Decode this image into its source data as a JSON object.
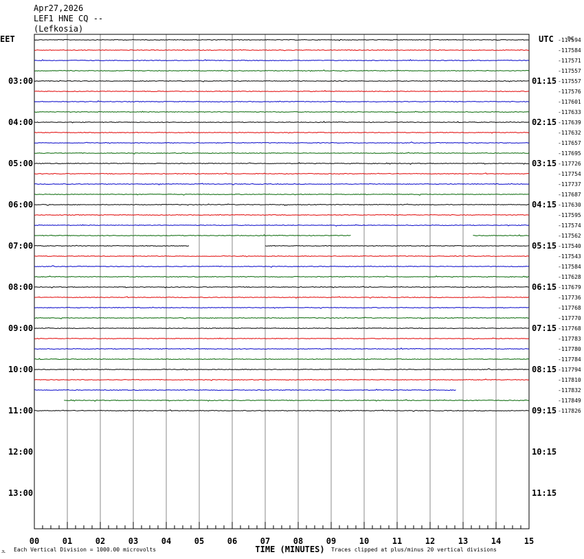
{
  "header": {
    "date": "Apr27,2026",
    "station": "LEF1 HNE CQ --",
    "location": "(Lefkosia)"
  },
  "chart_data": {
    "type": "line",
    "title": "Apr27,2026 LEF1 HNE CQ -- (Lefkosia)",
    "left_timezone": "EET",
    "right_timezone": "UTC",
    "right_top_label": "DC",
    "xlabel": "TIME (MINUTES)",
    "xlim": [
      0,
      15
    ],
    "x_ticks": [
      "00",
      "01",
      "02",
      "03",
      "04",
      "05",
      "06",
      "07",
      "08",
      "09",
      "10",
      "11",
      "12",
      "13",
      "14",
      "15"
    ],
    "left_hour_labels": [
      "03:00",
      "04:00",
      "05:00",
      "06:00",
      "07:00",
      "08:00",
      "09:00",
      "10:00",
      "11:00",
      "12:00",
      "13:00"
    ],
    "right_hour_labels": [
      "01:15",
      "02:15",
      "03:15",
      "04:15",
      "05:15",
      "06:15",
      "07:15",
      "08:15",
      "09:15",
      "10:15",
      "11:15"
    ],
    "trace_colors": [
      "#000000",
      "#e00000",
      "#0000c8",
      "#006400"
    ],
    "dc_offsets": [
      "-117594",
      "-117584",
      "-117571",
      "-117557",
      "-117557",
      "-117576",
      "-117601",
      "-117633",
      "-117639",
      "-117632",
      "-117657",
      "-117695",
      "-117726",
      "-117754",
      "-117737",
      "-117687",
      "-117630",
      "-117595",
      "-117574",
      "-117562",
      "-117540",
      "-117543",
      "-117584",
      "-117628",
      "-117679",
      "-117736",
      "-117768",
      "-117770",
      "-117768",
      "-117783",
      "-117780",
      "-117784",
      "-117794",
      "-117810",
      "-117832",
      "-117849",
      "-117826"
    ],
    "trace_segments": [
      [
        [
          0,
          15
        ]
      ],
      [
        [
          0,
          15
        ]
      ],
      [
        [
          0,
          15
        ]
      ],
      [
        [
          0,
          15
        ]
      ],
      [
        [
          0,
          15
        ]
      ],
      [
        [
          0,
          15
        ]
      ],
      [
        [
          0,
          15
        ]
      ],
      [
        [
          0,
          15
        ]
      ],
      [
        [
          0,
          15
        ]
      ],
      [
        [
          0,
          15
        ]
      ],
      [
        [
          0,
          15
        ]
      ],
      [
        [
          0,
          15
        ]
      ],
      [
        [
          0,
          15
        ]
      ],
      [
        [
          0,
          15
        ]
      ],
      [
        [
          0,
          15
        ]
      ],
      [
        [
          0,
          15
        ]
      ],
      [
        [
          0,
          15
        ]
      ],
      [
        [
          0,
          15
        ]
      ],
      [
        [
          0,
          15
        ]
      ],
      [
        [
          0,
          9.6
        ],
        [
          13.3,
          15
        ]
      ],
      [
        [
          0,
          4.7
        ],
        [
          7.0,
          15
        ]
      ],
      [
        [
          0,
          15
        ]
      ],
      [
        [
          0,
          15
        ]
      ],
      [
        [
          0,
          15
        ]
      ],
      [
        [
          0,
          15
        ]
      ],
      [
        [
          0,
          15
        ]
      ],
      [
        [
          0,
          15
        ]
      ],
      [
        [
          0,
          15
        ]
      ],
      [
        [
          0,
          15
        ]
      ],
      [
        [
          0,
          15
        ]
      ],
      [
        [
          0,
          15
        ]
      ],
      [
        [
          0,
          15
        ]
      ],
      [
        [
          0,
          15
        ]
      ],
      [
        [
          0,
          15
        ]
      ],
      [
        [
          0,
          12.8
        ]
      ],
      [
        [
          0.9,
          15
        ]
      ],
      [
        [
          0,
          15
        ]
      ]
    ],
    "footer_left": "Each Vertical Division = 1000.00 microvolts",
    "footer_right": "Traces clipped at plus/minus 20 vertical divisions",
    "corner_mark": "JL",
    "grid": true
  }
}
